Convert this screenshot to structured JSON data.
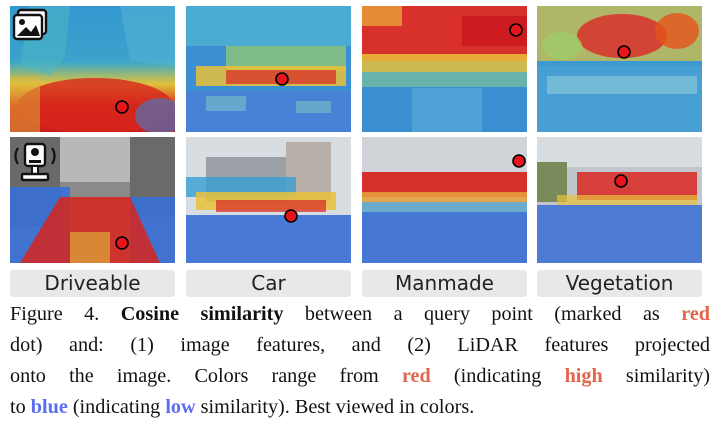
{
  "columns": [
    "Driveable",
    "Car",
    "Manmade",
    "Vegetation"
  ],
  "rows": [
    {
      "icon": "image-icon"
    },
    {
      "icon": "lidar-sensor-icon"
    }
  ],
  "caption": {
    "prefix": "Figure 4.",
    "title": "Cosine similarity",
    "t1": "between a query point (marked as",
    "red1": "red",
    "t2": "dot) and: (1) image features, and (2) LiDAR features projected",
    "t3": "onto the image. Colors range from",
    "red2": "red",
    "t4": "(indicating",
    "high": "high",
    "t5": "similarity)",
    "t6": "to",
    "blue1": "blue",
    "t7": "(indicating",
    "low": "low",
    "t8": "similarity). Best viewed in colors."
  },
  "colors": {
    "high": "#e4654e",
    "low": "#5b6ef0",
    "query_dot": "#e8141b"
  }
}
